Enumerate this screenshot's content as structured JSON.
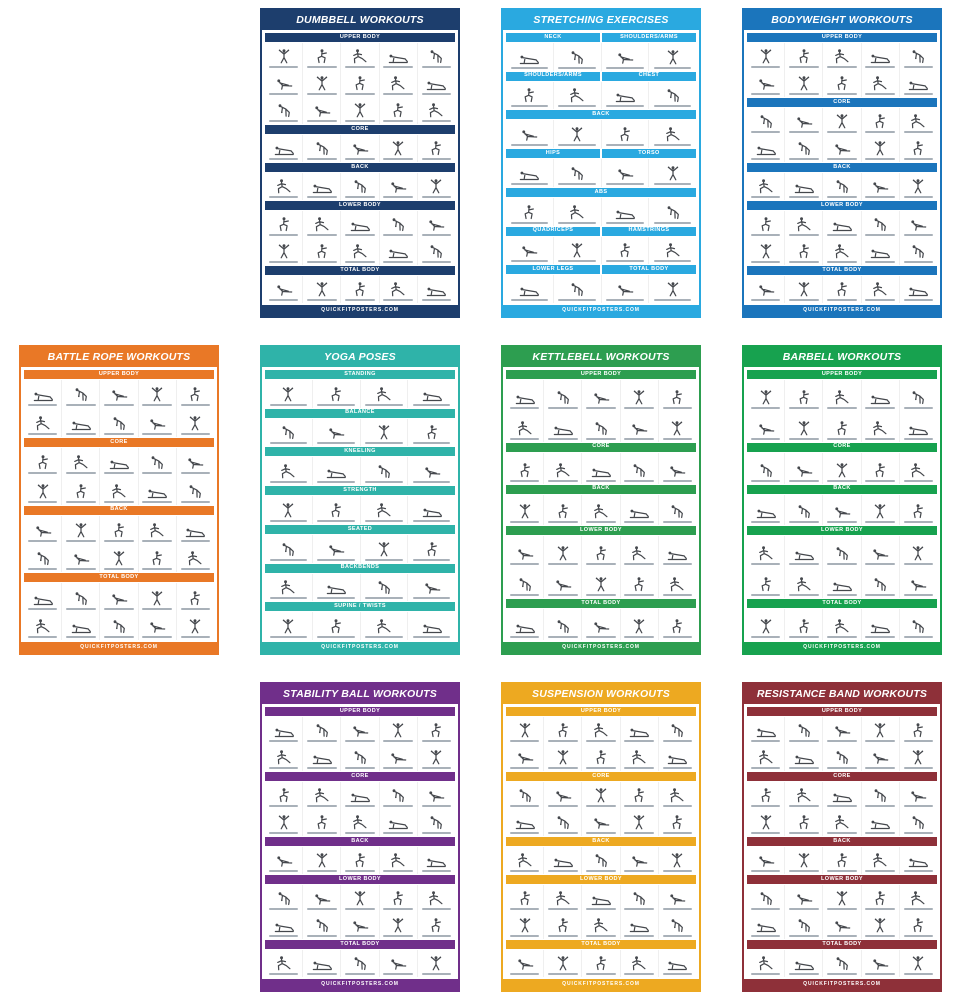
{
  "page": {
    "background": "#ffffff"
  },
  "footer_text": "QUICKFITPOSTERS.COM",
  "figure_variants": [
    "standing-press",
    "squat",
    "lunge",
    "plank",
    "bent-over-row",
    "seated-stretch"
  ],
  "posters": [
    {
      "id": "dumbbell-workouts",
      "title": "DUMBBELL WORKOUTS",
      "theme": "#1d3e6d",
      "layout": {
        "row": 1,
        "col": 2
      },
      "columns": 5,
      "sections": [
        {
          "labels": [
            "UPPER BODY"
          ],
          "rows": 3
        },
        {
          "labels": [
            "CORE"
          ],
          "rows": 1
        },
        {
          "labels": [
            "BACK"
          ],
          "rows": 1
        },
        {
          "labels": [
            "LOWER BODY"
          ],
          "rows": 2
        },
        {
          "labels": [
            "TOTAL BODY"
          ],
          "rows": 1
        }
      ]
    },
    {
      "id": "stretching-exercises",
      "title": "STRETCHING EXERCISES",
      "theme": "#2aa9e0",
      "layout": {
        "row": 1,
        "col": 3
      },
      "columns": 4,
      "sections": [
        {
          "labels": [
            "NECK",
            "SHOULDERS/ARMS"
          ],
          "rows": 1
        },
        {
          "labels": [
            "SHOULDERS/ARMS",
            "CHEST"
          ],
          "rows": 1
        },
        {
          "labels": [
            "BACK"
          ],
          "rows": 1
        },
        {
          "labels": [
            "HIPS",
            "TORSO"
          ],
          "rows": 1
        },
        {
          "labels": [
            "ABS"
          ],
          "rows": 1
        },
        {
          "labels": [
            "QUADRICEPS",
            "HAMSTRINGS"
          ],
          "rows": 1
        },
        {
          "labels": [
            "LOWER LEGS",
            "TOTAL BODY"
          ],
          "rows": 1
        }
      ]
    },
    {
      "id": "bodyweight-workouts",
      "title": "BODYWEIGHT WORKOUTS",
      "theme": "#1b75bc",
      "layout": {
        "row": 1,
        "col": 4
      },
      "columns": 5,
      "sections": [
        {
          "labels": [
            "UPPER BODY"
          ],
          "rows": 2
        },
        {
          "labels": [
            "CORE"
          ],
          "rows": 2
        },
        {
          "labels": [
            "BACK"
          ],
          "rows": 1
        },
        {
          "labels": [
            "LOWER BODY"
          ],
          "rows": 2
        },
        {
          "labels": [
            "TOTAL BODY"
          ],
          "rows": 1
        }
      ]
    },
    {
      "id": "battle-rope-workouts",
      "title": "BATTLE ROPE WORKOUTS",
      "theme": "#e97826",
      "layout": {
        "row": 2,
        "col": 1
      },
      "columns": 5,
      "sections": [
        {
          "labels": [
            "UPPER BODY"
          ],
          "rows": 2
        },
        {
          "labels": [
            "CORE"
          ],
          "rows": 2
        },
        {
          "labels": [
            "BACK"
          ],
          "rows": 2
        },
        {
          "labels": [
            "TOTAL BODY"
          ],
          "rows": 2
        }
      ]
    },
    {
      "id": "yoga-poses",
      "title": "YOGA POSES",
      "theme": "#2fb3a9",
      "layout": {
        "row": 2,
        "col": 2
      },
      "columns": 4,
      "sections": [
        {
          "labels": [
            "STANDING"
          ],
          "rows": 1
        },
        {
          "labels": [
            "BALANCE"
          ],
          "rows": 1
        },
        {
          "labels": [
            "KNEELING"
          ],
          "rows": 1
        },
        {
          "labels": [
            "STRENGTH"
          ],
          "rows": 1
        },
        {
          "labels": [
            "SEATED"
          ],
          "rows": 1
        },
        {
          "labels": [
            "BACKBENDS"
          ],
          "rows": 1
        },
        {
          "labels": [
            "SUPINE / TWISTS"
          ],
          "rows": 1
        }
      ]
    },
    {
      "id": "kettlebell-workouts",
      "title": "KETTLEBELL WORKOUTS",
      "theme": "#2d9e50",
      "layout": {
        "row": 2,
        "col": 3
      },
      "columns": 5,
      "sections": [
        {
          "labels": [
            "UPPER BODY"
          ],
          "rows": 2
        },
        {
          "labels": [
            "CORE"
          ],
          "rows": 1
        },
        {
          "labels": [
            "BACK"
          ],
          "rows": 1
        },
        {
          "labels": [
            "LOWER BODY"
          ],
          "rows": 2
        },
        {
          "labels": [
            "TOTAL BODY"
          ],
          "rows": 1
        }
      ]
    },
    {
      "id": "barbell-workouts",
      "title": "BARBELL WORKOUTS",
      "theme": "#17a24f",
      "layout": {
        "row": 2,
        "col": 4
      },
      "columns": 5,
      "sections": [
        {
          "labels": [
            "UPPER BODY"
          ],
          "rows": 2
        },
        {
          "labels": [
            "CORE"
          ],
          "rows": 1
        },
        {
          "labels": [
            "BACK"
          ],
          "rows": 1
        },
        {
          "labels": [
            "LOWER BODY"
          ],
          "rows": 2
        },
        {
          "labels": [
            "TOTAL BODY"
          ],
          "rows": 1
        }
      ]
    },
    {
      "id": "stability-ball-workouts",
      "title": "STABILITY BALL WORKOUTS",
      "theme": "#702f8a",
      "layout": {
        "row": 3,
        "col": 2
      },
      "columns": 5,
      "sections": [
        {
          "labels": [
            "UPPER BODY"
          ],
          "rows": 2
        },
        {
          "labels": [
            "CORE"
          ],
          "rows": 2
        },
        {
          "labels": [
            "BACK"
          ],
          "rows": 1
        },
        {
          "labels": [
            "LOWER BODY"
          ],
          "rows": 2
        },
        {
          "labels": [
            "TOTAL BODY"
          ],
          "rows": 1
        }
      ]
    },
    {
      "id": "suspension-workouts",
      "title": "SUSPENSION WORKOUTS",
      "theme": "#eda921",
      "layout": {
        "row": 3,
        "col": 3
      },
      "columns": 5,
      "sections": [
        {
          "labels": [
            "UPPER BODY"
          ],
          "rows": 2
        },
        {
          "labels": [
            "CORE"
          ],
          "rows": 2
        },
        {
          "labels": [
            "BACK"
          ],
          "rows": 1
        },
        {
          "labels": [
            "LOWER BODY"
          ],
          "rows": 2
        },
        {
          "labels": [
            "TOTAL BODY"
          ],
          "rows": 1
        }
      ]
    },
    {
      "id": "resistance-band-workouts",
      "title": "RESISTANCE BAND WORKOUTS",
      "theme": "#8e3039",
      "layout": {
        "row": 3,
        "col": 4
      },
      "columns": 5,
      "sections": [
        {
          "labels": [
            "UPPER BODY"
          ],
          "rows": 2
        },
        {
          "labels": [
            "CORE"
          ],
          "rows": 2
        },
        {
          "labels": [
            "BACK"
          ],
          "rows": 1
        },
        {
          "labels": [
            "LOWER BODY"
          ],
          "rows": 2
        },
        {
          "labels": [
            "TOTAL BODY"
          ],
          "rows": 1
        }
      ]
    }
  ]
}
